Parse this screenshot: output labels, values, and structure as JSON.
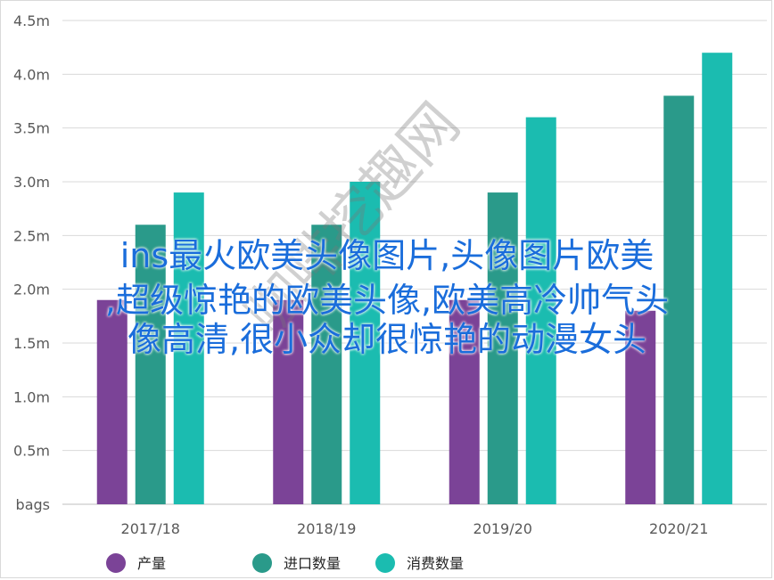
{
  "chart_data": {
    "type": "bar",
    "categories": [
      "2017/18",
      "2018/19",
      "2019/20",
      "2020/21"
    ],
    "series": [
      {
        "name": "产量",
        "color": "#7b4397",
        "values": [
          1.9,
          1.9,
          1.9,
          1.8
        ]
      },
      {
        "name": "进口数量",
        "color": "#2a9a8a",
        "values": [
          2.6,
          2.6,
          2.9,
          3.8
        ]
      },
      {
        "name": "消费数量",
        "color": "#1bbcb0",
        "values": [
          2.9,
          3.0,
          3.6,
          4.2
        ]
      }
    ],
    "ylim": [
      0,
      4.5
    ],
    "yticks": [
      "bags",
      "0.5m",
      "1.0m",
      "1.5m",
      "2.0m",
      "2.5m",
      "3.0m",
      "3.5m",
      "4.0m",
      "4.5m"
    ],
    "grid": true,
    "legend_position": "bottom"
  },
  "overlay_text": {
    "line1": "ins最火欧美头像图片,头像图片欧美",
    "line2": ",超级惊艳的欧美头像,欧美高冷帅气头",
    "line3": "像高清,很小众却很惊艳的动漫女头"
  },
  "watermark": "咖啡挖趣网"
}
